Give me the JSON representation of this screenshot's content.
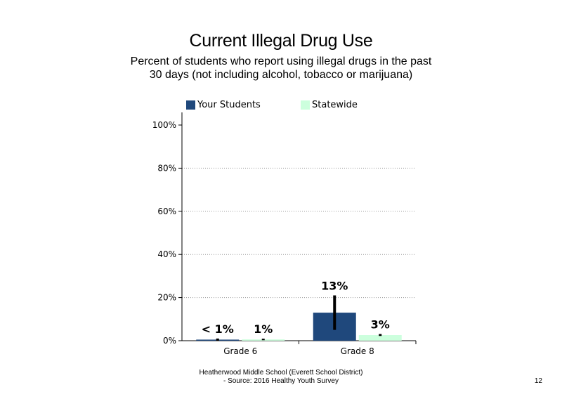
{
  "title": "Current Illegal Drug Use",
  "subtitle": "Percent of students who report using illegal drugs in the past 30 days (not including alcohol, tobacco or marijuana)",
  "legend": {
    "your_students": "Your Students",
    "statewide": "Statewide"
  },
  "colors": {
    "your_students": "#1f487c",
    "statewide": "#ccffdd",
    "error_bar": "#000000",
    "gridline": "#999999"
  },
  "footer": {
    "line1": "Heatherwood Middle School (Everett School District)",
    "line2": "- Source: 2016 Healthy Youth Survey"
  },
  "page_number": "12",
  "chart_data": {
    "type": "bar",
    "categories": [
      "Grade 6",
      "Grade 8"
    ],
    "series": [
      {
        "name": "Your Students",
        "values": [
          0.5,
          13
        ],
        "labels": [
          "< 1%",
          "13%"
        ],
        "error_low": [
          0,
          5
        ],
        "error_high": [
          1,
          21
        ]
      },
      {
        "name": "Statewide",
        "values": [
          0.6,
          2.6
        ],
        "labels": [
          "1%",
          "3%"
        ],
        "error_low": [
          0.3,
          2.2
        ],
        "error_high": [
          0.9,
          3.1
        ]
      }
    ],
    "ylim": [
      0,
      100
    ],
    "yticks": [
      0,
      20,
      40,
      60,
      80,
      100
    ],
    "ytick_labels": [
      "0%",
      "20%",
      "40%",
      "60%",
      "80%",
      "100%"
    ],
    "grid": "dotted horizontal at 20%, 40%, 60%, 80%",
    "legend_position": "top"
  }
}
